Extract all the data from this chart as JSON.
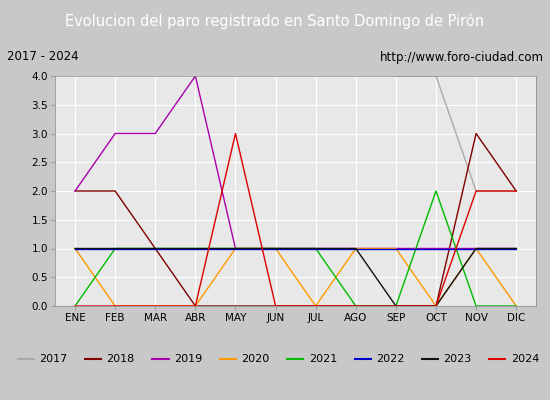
{
  "title": "Evolucion del paro registrado en Santo Domingo de Pirón",
  "subtitle_left": "2017 - 2024",
  "subtitle_right": "http://www.foro-ciudad.com",
  "months": [
    "ENE",
    "FEB",
    "MAR",
    "ABR",
    "MAY",
    "JUN",
    "JUL",
    "AGO",
    "SEP",
    "OCT",
    "NOV",
    "DIC"
  ],
  "x_positions": [
    1,
    2,
    3,
    4,
    5,
    6,
    7,
    8,
    9,
    10,
    11,
    12
  ],
  "series": {
    "2017": {
      "color": "#aaaaaa",
      "data": [
        [
          9,
          4
        ],
        [
          10,
          4
        ],
        [
          11,
          2
        ],
        [
          12,
          2
        ]
      ]
    },
    "2018": {
      "color": "#800000",
      "data": [
        [
          1,
          2
        ],
        [
          2,
          2
        ],
        [
          3,
          1
        ],
        [
          4,
          0
        ],
        [
          5,
          0
        ],
        [
          6,
          0
        ],
        [
          7,
          0
        ],
        [
          8,
          0
        ],
        [
          9,
          0
        ],
        [
          10,
          0
        ],
        [
          11,
          3
        ],
        [
          12,
          2
        ]
      ]
    },
    "2019": {
      "color": "#aa00aa",
      "data": [
        [
          1,
          2
        ],
        [
          2,
          3
        ],
        [
          3,
          3
        ],
        [
          4,
          4
        ],
        [
          5,
          1
        ],
        [
          6,
          1
        ],
        [
          7,
          1
        ],
        [
          8,
          1
        ],
        [
          9,
          1
        ],
        [
          10,
          1
        ],
        [
          11,
          1
        ],
        [
          12,
          1
        ]
      ]
    },
    "2020": {
      "color": "#ff9900",
      "data": [
        [
          1,
          1
        ],
        [
          2,
          0
        ],
        [
          3,
          0
        ],
        [
          4,
          0
        ],
        [
          5,
          1
        ],
        [
          6,
          1
        ],
        [
          7,
          0
        ],
        [
          8,
          1
        ],
        [
          9,
          1
        ],
        [
          10,
          0
        ],
        [
          11,
          1
        ],
        [
          12,
          0
        ]
      ]
    },
    "2021": {
      "color": "#00bb00",
      "data": [
        [
          1,
          0
        ],
        [
          2,
          1
        ],
        [
          3,
          1
        ],
        [
          4,
          1
        ],
        [
          5,
          1
        ],
        [
          6,
          1
        ],
        [
          7,
          1
        ],
        [
          8,
          0
        ],
        [
          9,
          0
        ],
        [
          10,
          2
        ],
        [
          11,
          0
        ],
        [
          12,
          0
        ]
      ]
    },
    "2022": {
      "color": "#0000cc",
      "data": [
        [
          1,
          1
        ],
        [
          2,
          1
        ],
        [
          3,
          1
        ],
        [
          4,
          1
        ],
        [
          5,
          1
        ],
        [
          6,
          1
        ],
        [
          7,
          1
        ],
        [
          8,
          1
        ],
        [
          9,
          1
        ],
        [
          10,
          1
        ],
        [
          11,
          1
        ],
        [
          12,
          1
        ]
      ]
    },
    "2023": {
      "color": "#111111",
      "data": [
        [
          1,
          1
        ],
        [
          2,
          1
        ],
        [
          3,
          1
        ],
        [
          4,
          1
        ],
        [
          5,
          1
        ],
        [
          6,
          1
        ],
        [
          7,
          1
        ],
        [
          8,
          1
        ],
        [
          9,
          0
        ],
        [
          10,
          0
        ],
        [
          11,
          1
        ],
        [
          12,
          1
        ]
      ]
    },
    "2024": {
      "color": "#dd0000",
      "data": [
        [
          1,
          0
        ],
        [
          2,
          0
        ],
        [
          3,
          0
        ],
        [
          4,
          0
        ],
        [
          5,
          3
        ],
        [
          6,
          0
        ],
        [
          7,
          0
        ],
        [
          8,
          0
        ],
        [
          9,
          0
        ],
        [
          10,
          0
        ],
        [
          11,
          2
        ],
        [
          12,
          2
        ]
      ]
    }
  },
  "ylim": [
    0,
    4.0
  ],
  "yticks": [
    0.0,
    0.5,
    1.0,
    1.5,
    2.0,
    2.5,
    3.0,
    3.5,
    4.0
  ],
  "title_bg_color": "#3a6abf",
  "title_font_color": "#ffffff",
  "subtitle_bg_color": "#d8d8d8",
  "plot_bg_color": "#e8e8e8",
  "grid_color": "#ffffff",
  "legend_bg_color": "#d8d8d8",
  "outer_bg_color": "#c8c8c8",
  "series_order": [
    "2017",
    "2018",
    "2019",
    "2020",
    "2021",
    "2022",
    "2023",
    "2024"
  ]
}
